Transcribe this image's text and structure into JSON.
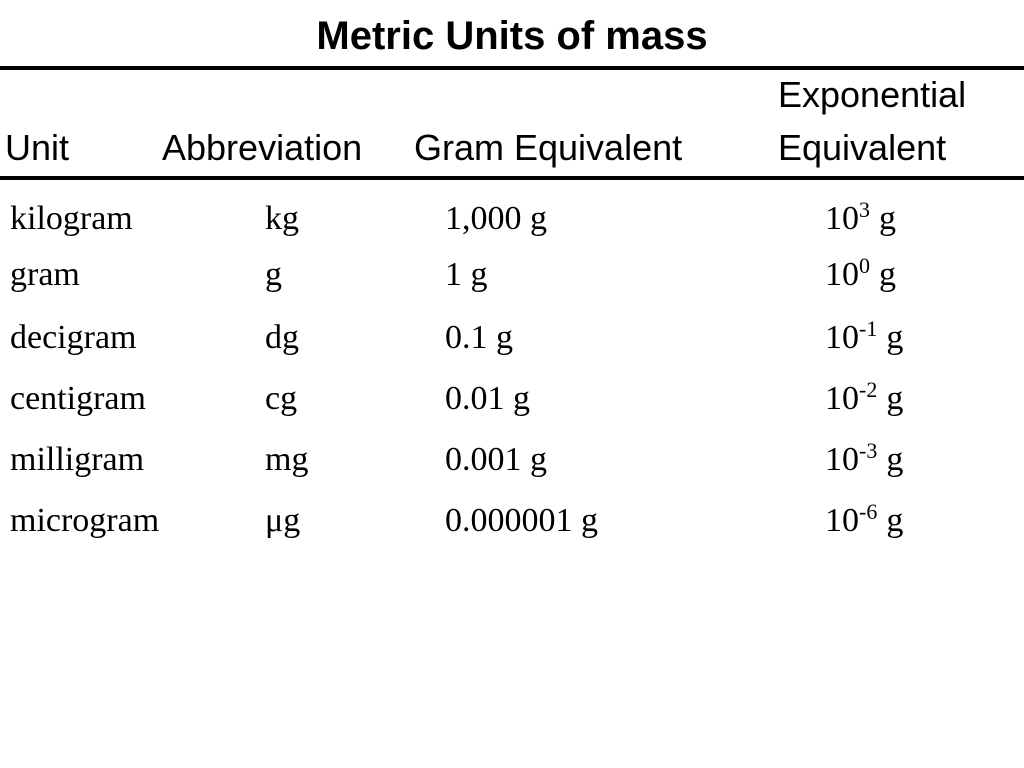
{
  "title": "Metric Units of mass",
  "table": {
    "headers": [
      "Unit",
      "Abbreviation",
      "Gram Equivalent",
      "Exponential Equivalent"
    ],
    "rows": [
      [
        "kilogram",
        "kg",
        "1,000 g",
        {
          "base": "10",
          "exponent": "3",
          "unit": "g"
        }
      ],
      [
        "gram",
        "g",
        "1 g",
        {
          "base": "10",
          "exponent": "0",
          "unit": "g"
        }
      ],
      [
        "decigram",
        "dg",
        "0.1 g",
        {
          "base": "10",
          "exponent": "-1",
          "unit": "g"
        }
      ],
      [
        "centigram",
        "cg",
        "0.01 g",
        {
          "base": "10",
          "exponent": "-2",
          "unit": "g"
        }
      ],
      [
        "milligram",
        "mg",
        "0.001 g",
        {
          "base": "10",
          "exponent": "-3",
          "unit": "g"
        }
      ],
      [
        "microgram",
        "μg",
        "0.000001 g",
        {
          "base": "10",
          "exponent": "-6",
          "unit": "g"
        }
      ]
    ]
  }
}
